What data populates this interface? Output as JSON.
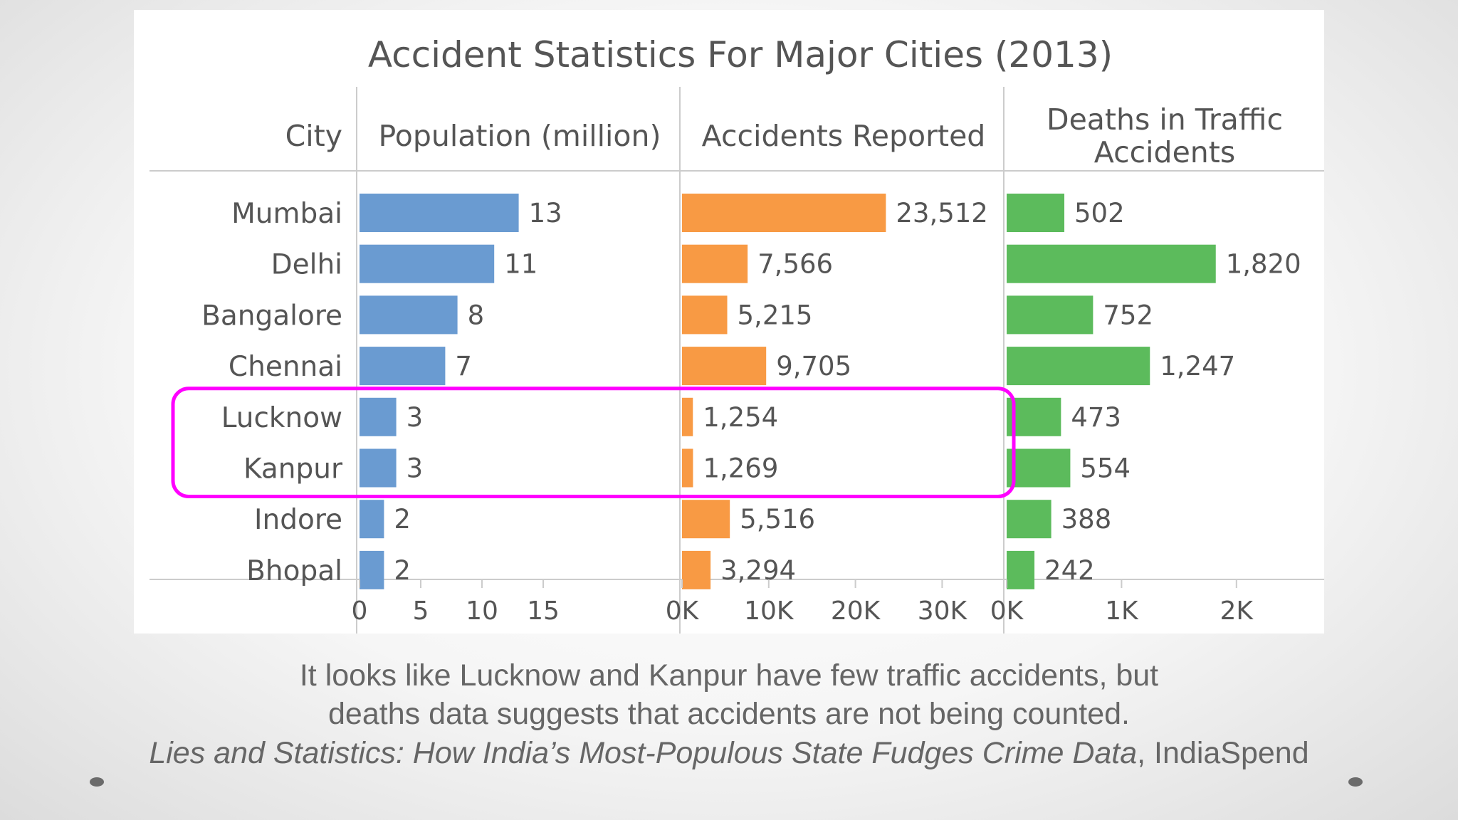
{
  "chart_data": {
    "type": "bar",
    "title": "Accident Statistics For Major Cities (2013)",
    "row_header": "City",
    "categories": [
      "Mumbai",
      "Delhi",
      "Bangalore",
      "Chennai",
      "Lucknow",
      "Kanpur",
      "Indore",
      "Bhopal"
    ],
    "series": [
      {
        "name": "Population (million)",
        "values": [
          13,
          11,
          8,
          7,
          3,
          3,
          2,
          2
        ],
        "value_labels": [
          "13",
          "11",
          "8",
          "7",
          "3",
          "3",
          "2",
          "2"
        ],
        "color": "#6a9bd1",
        "ticks": [
          0,
          5,
          10,
          15
        ],
        "tick_labels": [
          "0",
          "5",
          "10",
          "15"
        ],
        "xlim": [
          0,
          19
        ]
      },
      {
        "name": "Accidents Reported",
        "values": [
          23512,
          7566,
          5215,
          9705,
          1254,
          1269,
          5516,
          3294
        ],
        "value_labels": [
          "23,512",
          "7,566",
          "5,215",
          "9,705",
          "1,254",
          "1,269",
          "5,516",
          "3,294"
        ],
        "color": "#f89a44",
        "ticks": [
          0,
          10000,
          20000,
          30000
        ],
        "tick_labels": [
          "0K",
          "10K",
          "20K",
          "30K"
        ],
        "xlim": [
          0,
          37000
        ]
      },
      {
        "name": "Deaths in Traffic Accidents",
        "values": [
          502,
          1820,
          752,
          1247,
          473,
          554,
          388,
          242
        ],
        "value_labels": [
          "502",
          "1,820",
          "752",
          "1,247",
          "473",
          "554",
          "388",
          "242"
        ],
        "color": "#5cbb5c",
        "ticks": [
          0,
          1000,
          2000
        ],
        "tick_labels": [
          "0K",
          "1K",
          "2K"
        ],
        "xlim": [
          0,
          2800
        ]
      }
    ],
    "highlight": {
      "categories": [
        "Lucknow",
        "Kanpur"
      ],
      "color": "#ff00ff"
    },
    "grid": false,
    "legend": "none"
  },
  "caption": {
    "line1": "It looks like Lucknow and Kanpur have few traffic accidents, but",
    "line2": "deaths data suggests that accidents are not being counted.",
    "source_title": "Lies and Statistics: How India’s Most-Populous State Fudges Crime Data",
    "source_rest": ", IndiaSpend"
  },
  "colors": {
    "text": "#555555",
    "caption": "#666666",
    "axis": "#cccccc"
  }
}
